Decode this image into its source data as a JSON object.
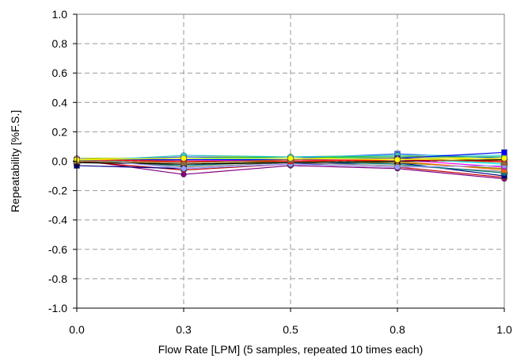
{
  "chart_data": {
    "type": "line",
    "xlabel": "Flow Rate [LPM]  (5 samples, repeated 10 times each)",
    "ylabel": "Repeatability [%F.S.]",
    "x": [
      0.0,
      0.25,
      0.5,
      0.75,
      1.0
    ],
    "x_tick_labels": [
      "0.0",
      "0.3",
      "0.5",
      "0.8",
      "1.0"
    ],
    "y_tick_labels": [
      "1.0",
      "0.8",
      "0.6",
      "0.4",
      "0.2",
      "0.0",
      "-0.2",
      "-0.4",
      "-0.6",
      "-0.8",
      "-1.0"
    ],
    "xlim": [
      0,
      1
    ],
    "ylim": [
      -1,
      1
    ],
    "grid": true,
    "grid_style": "dashed",
    "series": [
      {
        "values": [
          0.01,
          -0.09,
          -0.03,
          -0.05,
          -0.12
        ],
        "color": "#800080",
        "marker": "circle"
      },
      {
        "values": [
          0.0,
          -0.06,
          -0.02,
          -0.04,
          -0.11
        ],
        "color": "#c00000",
        "marker": "circle"
      },
      {
        "values": [
          -0.03,
          -0.05,
          -0.02,
          -0.01,
          -0.1
        ],
        "color": "#000080",
        "marker": "square"
      },
      {
        "values": [
          0.02,
          -0.04,
          -0.01,
          -0.03,
          -0.07
        ],
        "color": "#808080",
        "marker": "triangle"
      },
      {
        "values": [
          0.01,
          -0.03,
          0.0,
          -0.02,
          -0.08
        ],
        "color": "#008080",
        "marker": "circle"
      },
      {
        "values": [
          0.0,
          -0.02,
          0.0,
          -0.01,
          -0.05
        ],
        "color": "#808000",
        "marker": "square"
      },
      {
        "values": [
          0.02,
          -0.01,
          0.01,
          0.0,
          -0.06
        ],
        "color": "#ff6600",
        "marker": "triangle"
      },
      {
        "values": [
          0.01,
          0.0,
          0.01,
          0.01,
          -0.04
        ],
        "color": "#ff00ff",
        "marker": "circle"
      },
      {
        "values": [
          0.0,
          0.01,
          0.02,
          0.02,
          -0.02
        ],
        "color": "#00ffff",
        "marker": "square"
      },
      {
        "values": [
          0.02,
          0.02,
          0.02,
          0.03,
          0.0
        ],
        "color": "#99cc00",
        "marker": "triangle"
      },
      {
        "values": [
          0.01,
          0.03,
          0.03,
          0.04,
          0.01
        ],
        "color": "#ffcc00",
        "marker": "circle"
      },
      {
        "values": [
          0.0,
          0.03,
          0.02,
          0.05,
          0.02
        ],
        "color": "#3366ff",
        "marker": "square"
      },
      {
        "values": [
          0.01,
          0.02,
          0.03,
          0.03,
          0.03
        ],
        "color": "#00b050",
        "marker": "triangle"
      },
      {
        "values": [
          0.0,
          0.04,
          0.03,
          0.04,
          0.04
        ],
        "color": "#33cccc",
        "marker": "circle"
      },
      {
        "values": [
          0.01,
          0.01,
          0.01,
          0.02,
          0.06
        ],
        "color": "#0000ff",
        "marker": "square"
      },
      {
        "values": [
          -0.01,
          -0.02,
          -0.01,
          0.0,
          0.01
        ],
        "color": "#000000",
        "marker": "cross"
      },
      {
        "values": [
          0.02,
          -0.05,
          -0.02,
          -0.04,
          -0.03
        ],
        "color": "#9999ff",
        "marker": "circle"
      },
      {
        "values": [
          0.01,
          0.0,
          0.0,
          0.01,
          0.0
        ],
        "color": "#ff0000",
        "marker": "square"
      },
      {
        "values": [
          0.0,
          -0.01,
          0.01,
          0.02,
          -0.01
        ],
        "color": "#996633",
        "marker": "triangle"
      },
      {
        "values": [
          0.01,
          0.02,
          0.02,
          0.01,
          0.02
        ],
        "color": "#ffff00",
        "marker": "circle"
      }
    ]
  }
}
